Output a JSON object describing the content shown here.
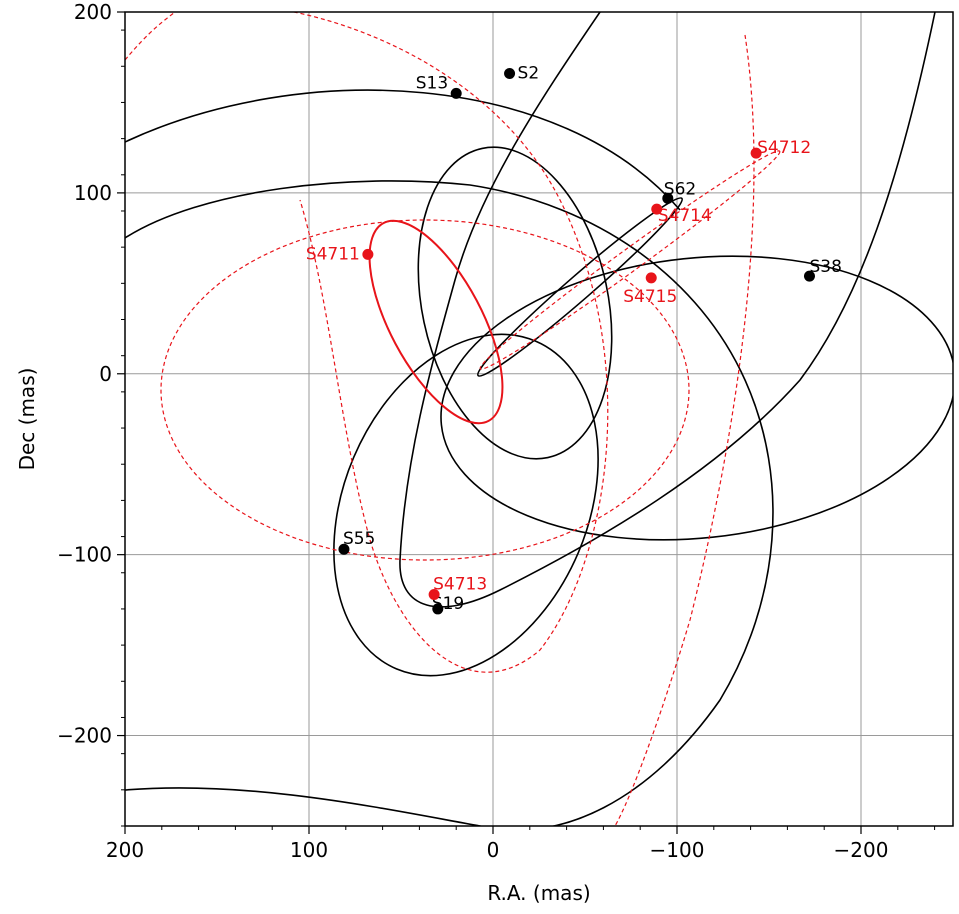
{
  "chart_data": {
    "type": "scatter",
    "title": "",
    "xlabel": "R.A. (mas)",
    "ylabel": "Dec (mas)",
    "xlim": [
      200,
      -250
    ],
    "ylim": [
      -250,
      200
    ],
    "x_inverted": true,
    "grid": true,
    "legend": "none",
    "xticks": [
      200,
      100,
      0,
      -100,
      -200
    ],
    "yticks": [
      200,
      100,
      0,
      -100,
      -200
    ],
    "xtick_labels": [
      "200",
      "100",
      "0",
      "−100",
      "−200"
    ],
    "ytick_labels": [
      "200",
      "100",
      "0",
      "−100",
      "−200"
    ],
    "colors": {
      "known": "#000000",
      "new": "#e8141a"
    },
    "series": [
      {
        "label": "S2",
        "group": "known",
        "x": -9,
        "y": 166
      },
      {
        "label": "S13",
        "group": "known",
        "x": 20,
        "y": 155
      },
      {
        "label": "S62",
        "group": "known",
        "x": -95,
        "y": 97
      },
      {
        "label": "S38",
        "group": "known",
        "x": -172,
        "y": 54
      },
      {
        "label": "S55",
        "group": "known",
        "x": 81,
        "y": -97
      },
      {
        "label": "S19",
        "group": "known",
        "x": 30,
        "y": -130
      },
      {
        "label": "S4711",
        "group": "new",
        "x": 68,
        "y": 66
      },
      {
        "label": "S4712",
        "group": "new",
        "x": -143,
        "y": 122
      },
      {
        "label": "S4714",
        "group": "new",
        "x": -89,
        "y": 91
      },
      {
        "label": "S4715",
        "group": "new",
        "x": -86,
        "y": 53
      },
      {
        "label": "S4713",
        "group": "new",
        "x": 32,
        "y": -122
      }
    ]
  }
}
